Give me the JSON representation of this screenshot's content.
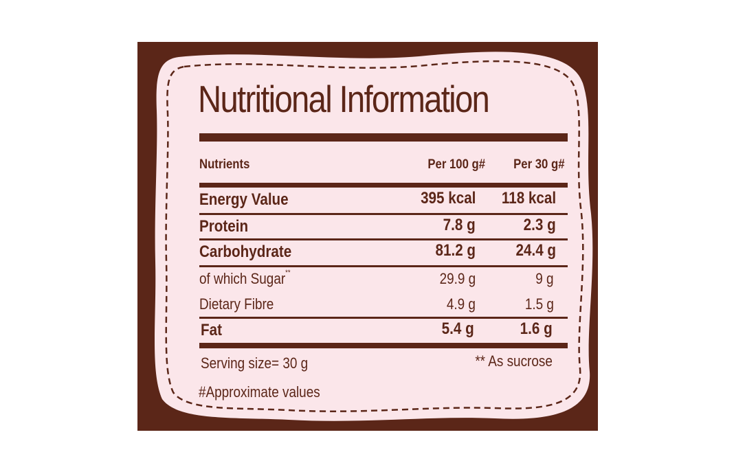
{
  "title": "Nutritional Information",
  "colors": {
    "panel": "#5b2618",
    "card": "#fbe6ea",
    "text": "#5b2618"
  },
  "table": {
    "headers": {
      "nutrient": "Nutrients",
      "per100": "Per 100 g#",
      "per30": "Per 30 g#"
    },
    "rows": [
      {
        "name": "Energy Value",
        "per100": "395 kcal",
        "per30": "118 kcal"
      },
      {
        "name": "Protein",
        "per100": "7.8 g",
        "per30": "2.3 g"
      },
      {
        "name": "Carbohydrate",
        "per100": "81.2 g",
        "per30": "24.4 g"
      },
      {
        "name": "of which Sugar",
        "note": "**",
        "per100": "29.9 g",
        "per30": "9 g"
      },
      {
        "name": "Dietary Fibre",
        "per100": "4.9 g",
        "per30": "1.5 g"
      },
      {
        "name": "Fat",
        "per100": "5.4 g",
        "per30": "1.6 g"
      }
    ]
  },
  "footer": {
    "serving": "Serving size= 30 g",
    "sucrose_note": "** As sucrose",
    "approx": "#Approximate values"
  }
}
